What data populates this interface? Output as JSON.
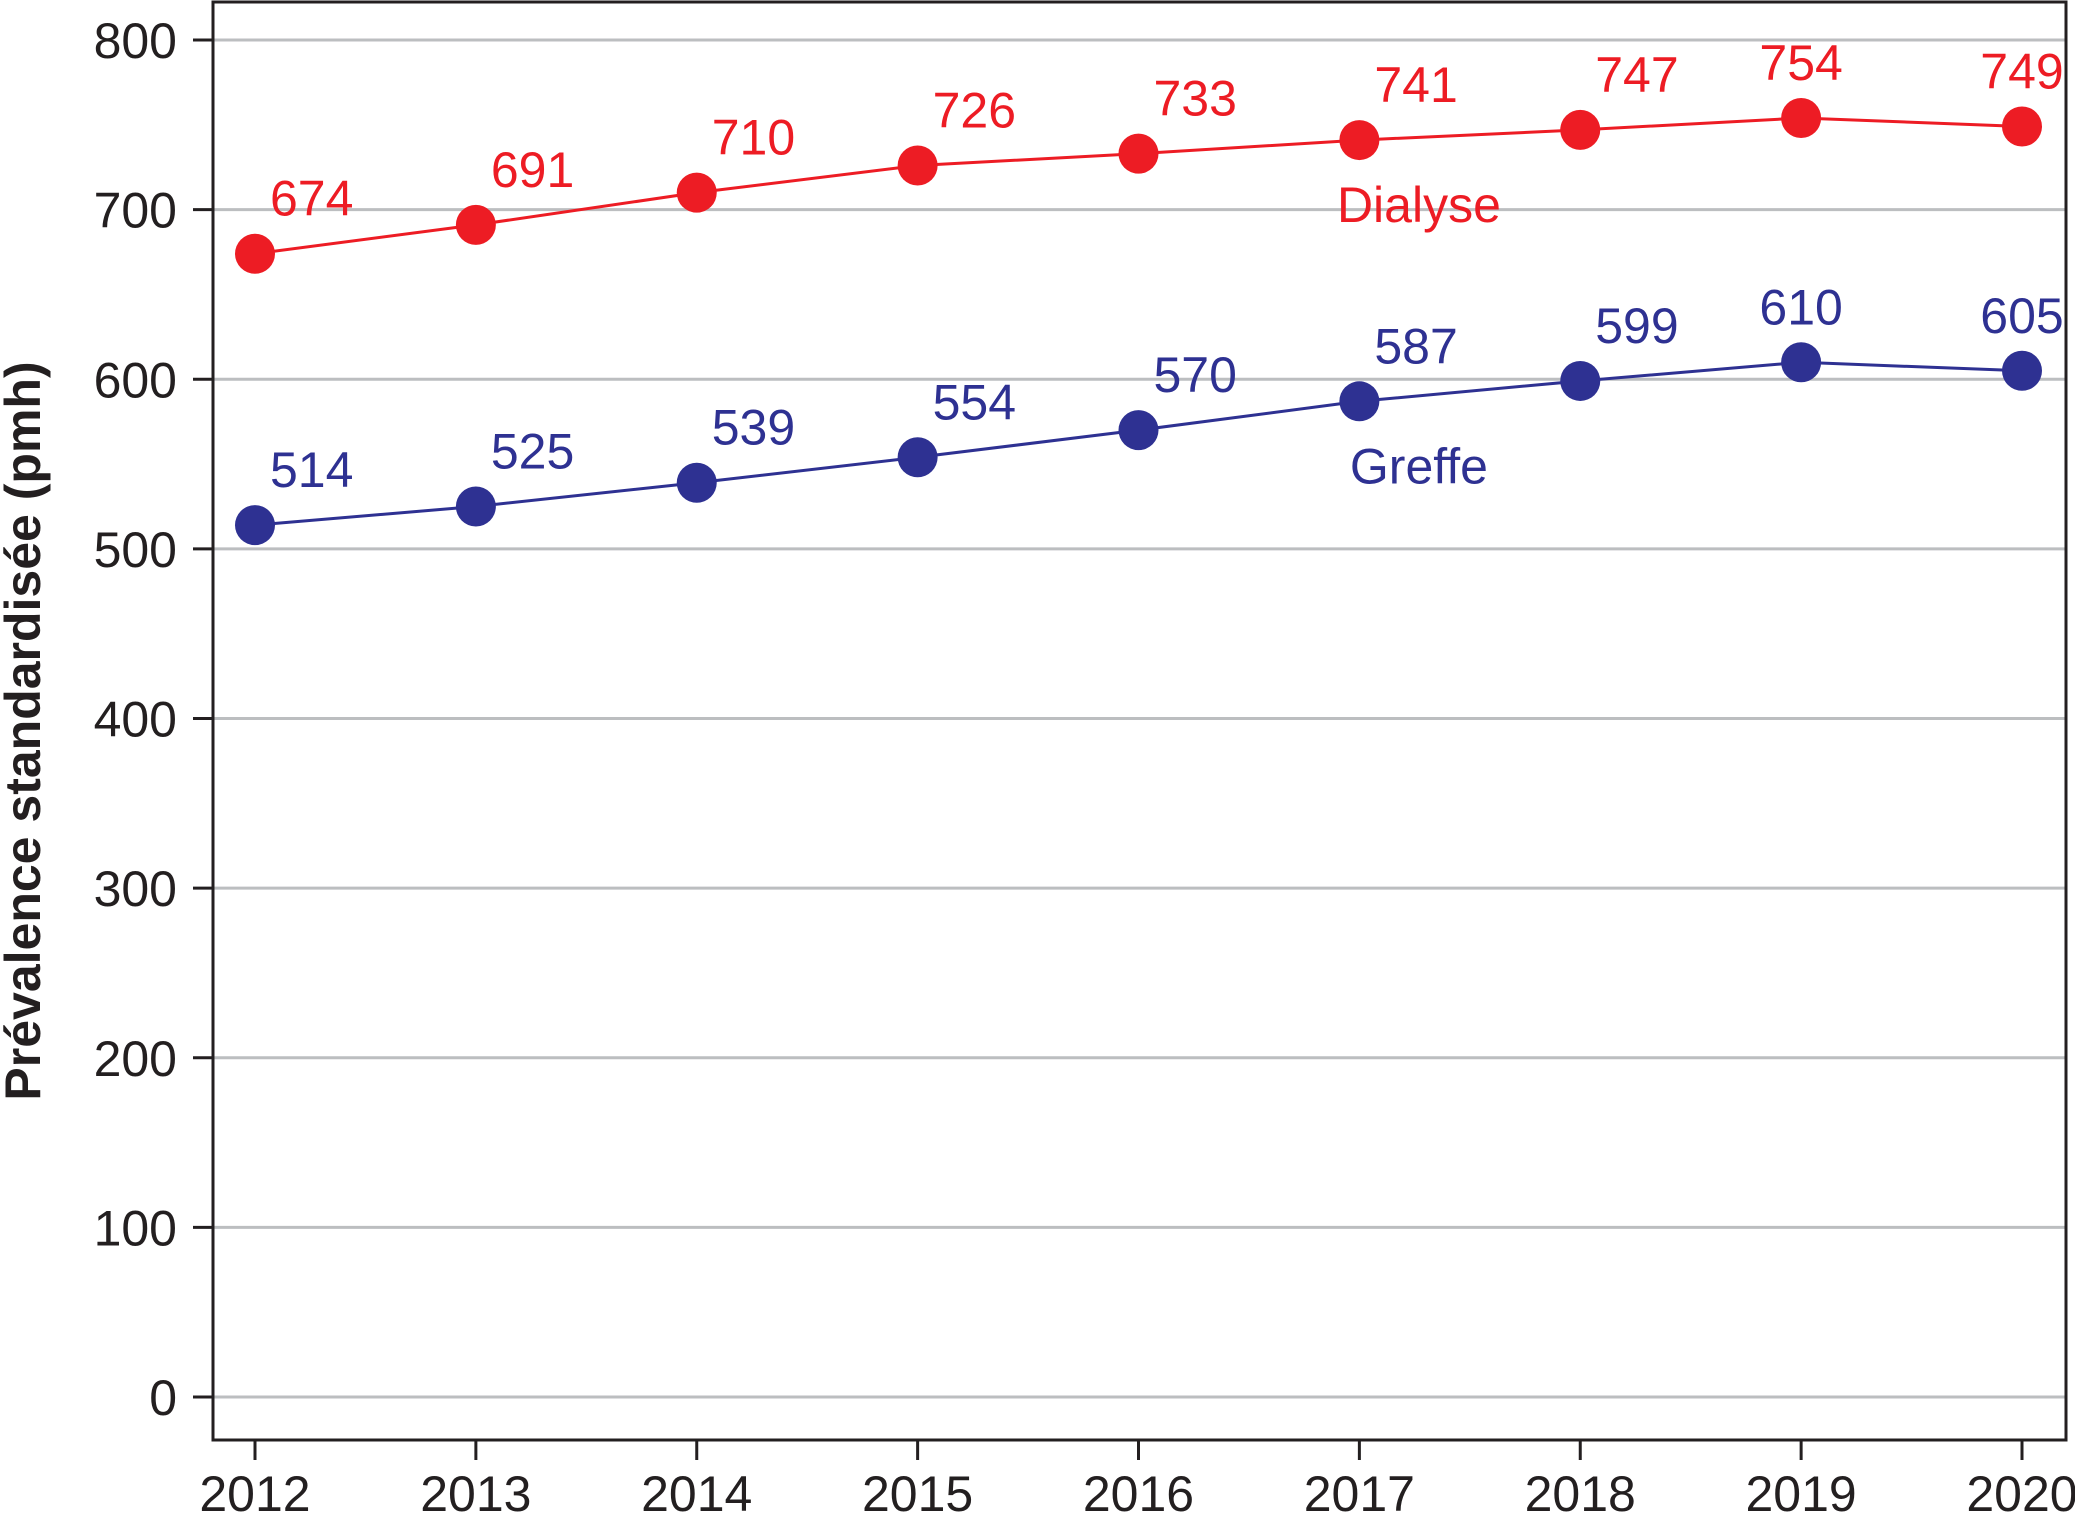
{
  "chart_data": {
    "type": "line",
    "title": "",
    "xlabel": "",
    "ylabel": "Prévalence standardisée (pmh)",
    "x": [
      "2012",
      "2013",
      "2014",
      "2015",
      "2016",
      "2017",
      "2018",
      "2019",
      "2020"
    ],
    "ylim": [
      0,
      800
    ],
    "yticks": [
      "0",
      "100",
      "200",
      "300",
      "400",
      "500",
      "600",
      "700",
      "800"
    ],
    "grid": true,
    "series": [
      {
        "name": "Dialyse",
        "color": "#ed1c24",
        "values": [
          674,
          691,
          710,
          726,
          733,
          741,
          747,
          754,
          749
        ],
        "labels": [
          "674",
          "691",
          "710",
          "726",
          "733",
          "741",
          "747",
          "754",
          "749"
        ]
      },
      {
        "name": "Greffe",
        "color": "#2e3192",
        "values": [
          514,
          525,
          539,
          554,
          570,
          587,
          599,
          610,
          605
        ],
        "labels": [
          "514",
          "525",
          "539",
          "554",
          "570",
          "587",
          "599",
          "610",
          "605"
        ]
      }
    ]
  }
}
